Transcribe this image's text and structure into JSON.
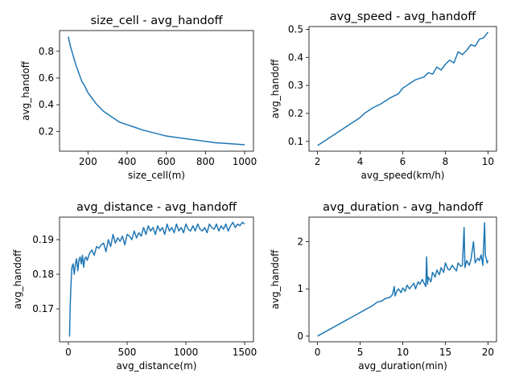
{
  "chart_data": [
    {
      "type": "line",
      "title": "size_cell - avg_handoff",
      "xlabel": "size_cell(m)",
      "ylabel": "avg_handoff",
      "xlim": [
        55,
        1045
      ],
      "ylim": [
        0.0515,
        0.9555
      ],
      "xticks": [
        200,
        400,
        600,
        800,
        1000
      ],
      "yticks": [
        0.2,
        0.4,
        0.6,
        0.8
      ],
      "xtick_labels": [
        "200",
        "400",
        "600",
        "800",
        "1000"
      ],
      "ytick_labels": [
        "0.2",
        "0.4",
        "0.6",
        "0.8"
      ],
      "grid": false,
      "color": "#1f77b4",
      "series": [
        {
          "x": [
            100,
            110,
            120,
            130,
            140,
            150,
            160,
            170,
            180,
            190,
            200,
            220,
            240,
            260,
            280,
            300,
            330,
            360,
            400,
            440,
            480,
            520,
            560,
            600,
            650,
            700,
            750,
            800,
            850,
            900,
            950,
            1000
          ],
          "y": [
            0.91,
            0.84,
            0.79,
            0.74,
            0.69,
            0.65,
            0.61,
            0.57,
            0.55,
            0.52,
            0.49,
            0.45,
            0.41,
            0.38,
            0.35,
            0.33,
            0.3,
            0.27,
            0.25,
            0.23,
            0.21,
            0.195,
            0.18,
            0.165,
            0.155,
            0.145,
            0.135,
            0.125,
            0.115,
            0.11,
            0.105,
            0.1
          ]
        }
      ]
    },
    {
      "type": "line",
      "title": "avg_speed - avg_handoff",
      "xlabel": "avg_speed(km/h)",
      "ylabel": "avg_handoff",
      "xlim": [
        1.6,
        10.4
      ],
      "ylim": [
        0.065,
        0.51
      ],
      "xticks": [
        2,
        4,
        6,
        8,
        10
      ],
      "yticks": [
        0.1,
        0.2,
        0.3,
        0.4,
        0.5
      ],
      "xtick_labels": [
        "2",
        "4",
        "6",
        "8",
        "10"
      ],
      "ytick_labels": [
        "0.1",
        "0.2",
        "0.3",
        "0.4",
        "0.5"
      ],
      "grid": false,
      "color": "#1f77b4",
      "series": [
        {
          "x": [
            2.0,
            2.4,
            2.8,
            3.2,
            3.6,
            4.0,
            4.2,
            4.6,
            5.0,
            5.4,
            5.8,
            6.0,
            6.4,
            6.6,
            7.0,
            7.2,
            7.4,
            7.6,
            7.8,
            8.0,
            8.2,
            8.4,
            8.6,
            8.8,
            9.0,
            9.2,
            9.4,
            9.6,
            9.8,
            10.0
          ],
          "y": [
            0.085,
            0.105,
            0.125,
            0.145,
            0.165,
            0.185,
            0.2,
            0.22,
            0.235,
            0.255,
            0.27,
            0.29,
            0.31,
            0.32,
            0.33,
            0.345,
            0.34,
            0.365,
            0.355,
            0.375,
            0.39,
            0.38,
            0.42,
            0.41,
            0.425,
            0.445,
            0.44,
            0.465,
            0.47,
            0.49
          ]
        }
      ]
    },
    {
      "type": "line",
      "title": "avg_distance - avg_handoff",
      "xlabel": "avg_distance(m)",
      "ylabel": "avg_handoff",
      "xlim": [
        -75,
        1575
      ],
      "ylim": [
        0.1605,
        0.1965
      ],
      "xticks": [
        0,
        500,
        1000,
        1500
      ],
      "yticks": [
        0.17,
        0.18,
        0.19
      ],
      "xtick_labels": [
        "0",
        "500",
        "1000",
        "1500"
      ],
      "ytick_labels": [
        "0.17",
        "0.18",
        "0.19"
      ],
      "grid": false,
      "color": "#1f77b4",
      "series": [
        {
          "x": [
            10,
            15,
            20,
            25,
            30,
            40,
            50,
            60,
            70,
            80,
            90,
            100,
            110,
            120,
            130,
            140,
            150,
            160,
            180,
            200,
            220,
            240,
            260,
            280,
            300,
            320,
            340,
            360,
            380,
            400,
            420,
            440,
            460,
            480,
            500,
            520,
            540,
            560,
            580,
            600,
            620,
            640,
            660,
            680,
            700,
            720,
            740,
            760,
            780,
            800,
            820,
            840,
            860,
            880,
            900,
            920,
            940,
            960,
            980,
            1000,
            1020,
            1040,
            1060,
            1080,
            1100,
            1120,
            1140,
            1160,
            1180,
            1200,
            1220,
            1240,
            1260,
            1280,
            1300,
            1320,
            1340,
            1360,
            1380,
            1400,
            1420,
            1440,
            1460,
            1480,
            1500
          ],
          "y": [
            0.162,
            0.17,
            0.175,
            0.179,
            0.182,
            0.183,
            0.18,
            0.183,
            0.1845,
            0.181,
            0.184,
            0.185,
            0.183,
            0.1855,
            0.182,
            0.1845,
            0.185,
            0.184,
            0.186,
            0.187,
            0.1855,
            0.188,
            0.1875,
            0.1885,
            0.189,
            0.1865,
            0.19,
            0.188,
            0.1915,
            0.189,
            0.1905,
            0.1895,
            0.191,
            0.1885,
            0.1915,
            0.191,
            0.19,
            0.1925,
            0.1905,
            0.192,
            0.191,
            0.1935,
            0.1915,
            0.194,
            0.1925,
            0.1935,
            0.1915,
            0.194,
            0.1925,
            0.1935,
            0.1915,
            0.1945,
            0.1925,
            0.1935,
            0.192,
            0.1945,
            0.1925,
            0.1935,
            0.192,
            0.1945,
            0.193,
            0.1925,
            0.194,
            0.1925,
            0.1945,
            0.193,
            0.1925,
            0.1935,
            0.192,
            0.1945,
            0.1935,
            0.193,
            0.1945,
            0.1925,
            0.194,
            0.193,
            0.1945,
            0.1925,
            0.194,
            0.195,
            0.1935,
            0.1945,
            0.194,
            0.195,
            0.1945
          ]
        }
      ]
    },
    {
      "type": "line",
      "title": "avg_duration - avg_handoff",
      "xlabel": "avg_duration(min)",
      "ylabel": "avg_handoff",
      "xlim": [
        -1,
        21
      ],
      "ylim": [
        -0.12,
        2.52
      ],
      "xticks": [
        0,
        5,
        10,
        15,
        20
      ],
      "yticks": [
        0,
        1,
        2
      ],
      "xtick_labels": [
        "0",
        "5",
        "10",
        "15",
        "20"
      ],
      "ytick_labels": [
        "0",
        "1",
        "2"
      ],
      "grid": false,
      "color": "#1f77b4",
      "series": [
        {
          "x": [
            0.0,
            1.0,
            2.0,
            3.0,
            4.0,
            5.0,
            5.5,
            6.0,
            6.5,
            7.0,
            7.5,
            8.0,
            8.5,
            8.8,
            9.0,
            9.1,
            9.3,
            9.5,
            9.8,
            10.0,
            10.3,
            10.5,
            10.8,
            11.0,
            11.3,
            11.5,
            11.8,
            12.0,
            12.3,
            12.5,
            12.7,
            12.8,
            12.9,
            13.0,
            13.3,
            13.5,
            13.8,
            14.0,
            14.3,
            14.5,
            14.8,
            15.0,
            15.3,
            15.5,
            15.8,
            16.0,
            16.3,
            16.5,
            16.8,
            17.0,
            17.2,
            17.3,
            17.5,
            17.8,
            18.0,
            18.3,
            18.5,
            18.8,
            19.0,
            19.2,
            19.4,
            19.6,
            19.7,
            19.8,
            19.9,
            20.0
          ],
          "y": [
            0.0,
            0.1,
            0.2,
            0.3,
            0.4,
            0.5,
            0.55,
            0.6,
            0.65,
            0.72,
            0.74,
            0.8,
            0.82,
            0.88,
            1.05,
            0.85,
            0.95,
            1.0,
            0.92,
            1.02,
            0.95,
            1.08,
            1.0,
            1.05,
            1.12,
            1.0,
            1.15,
            1.1,
            1.2,
            1.12,
            1.05,
            1.68,
            1.1,
            1.25,
            1.15,
            1.35,
            1.25,
            1.4,
            1.3,
            1.45,
            1.35,
            1.55,
            1.42,
            1.4,
            1.5,
            1.45,
            1.38,
            1.55,
            1.48,
            1.5,
            2.3,
            1.45,
            1.6,
            1.5,
            1.62,
            2.0,
            1.55,
            1.65,
            1.6,
            1.72,
            1.5,
            2.4,
            1.7,
            1.65,
            1.55,
            1.6
          ]
        }
      ]
    }
  ]
}
